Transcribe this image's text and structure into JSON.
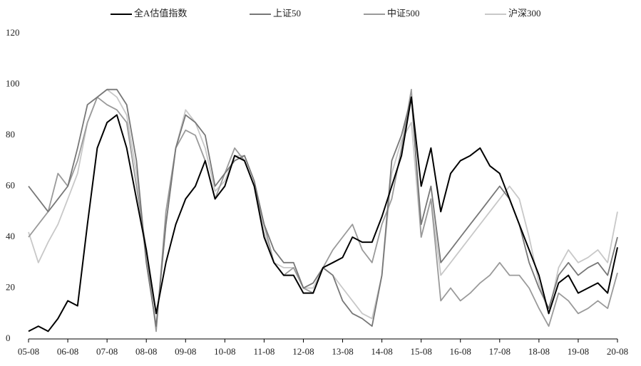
{
  "chart_data": {
    "type": "line",
    "categories": [
      "05-08",
      null,
      null,
      null,
      "06-08",
      null,
      null,
      null,
      "07-08",
      null,
      null,
      null,
      "08-08",
      null,
      null,
      null,
      "09-08",
      null,
      null,
      null,
      "10-08",
      null,
      null,
      null,
      "11-08",
      null,
      null,
      null,
      "12-08",
      null,
      null,
      null,
      "13-08",
      null,
      null,
      null,
      "14-08",
      null,
      null,
      null,
      "15-08",
      null,
      null,
      null,
      "16-08",
      null,
      null,
      null,
      "17-08",
      null,
      null,
      null,
      "18-08",
      null,
      null,
      null,
      "19-08",
      null,
      null,
      null,
      "20-08"
    ],
    "series": [
      {
        "name": "全A估值指数",
        "color": "#000000",
        "values": [
          3,
          5,
          3,
          8,
          15,
          13,
          45,
          75,
          85,
          88,
          75,
          55,
          35,
          10,
          30,
          45,
          55,
          60,
          70,
          55,
          60,
          72,
          70,
          60,
          40,
          30,
          25,
          25,
          18,
          18,
          28,
          30,
          32,
          40,
          38,
          38,
          48,
          60,
          72,
          95,
          60,
          75,
          50,
          65,
          70,
          72,
          75,
          68,
          65,
          55,
          45,
          35,
          25,
          10,
          22,
          25,
          18,
          20,
          22,
          18,
          36
        ]
      },
      {
        "name": "上证50",
        "color": "#777777",
        "values": [
          60,
          55,
          50,
          55,
          60,
          75,
          92,
          95,
          98,
          98,
          92,
          70,
          30,
          5,
          45,
          75,
          88,
          85,
          80,
          60,
          65,
          70,
          72,
          62,
          45,
          35,
          30,
          30,
          20,
          22,
          28,
          25,
          15,
          10,
          8,
          5,
          25,
          70,
          80,
          95,
          45,
          60,
          30,
          35,
          40,
          45,
          50,
          55,
          60,
          55,
          45,
          30,
          20,
          12,
          25,
          30,
          25,
          28,
          30,
          25,
          40
        ]
      },
      {
        "name": "中证500",
        "color": "#9a9a9a",
        "values": [
          40,
          45,
          50,
          65,
          60,
          70,
          85,
          95,
          92,
          90,
          85,
          60,
          35,
          3,
          50,
          75,
          82,
          80,
          70,
          55,
          65,
          75,
          70,
          60,
          45,
          30,
          25,
          28,
          20,
          18,
          28,
          35,
          40,
          45,
          35,
          30,
          45,
          55,
          75,
          98,
          40,
          55,
          15,
          20,
          15,
          18,
          22,
          25,
          30,
          25,
          25,
          20,
          12,
          5,
          18,
          15,
          10,
          12,
          15,
          12,
          26
        ]
      },
      {
        "name": "沪深300",
        "color": "#c8c8c8",
        "values": [
          42,
          30,
          38,
          45,
          55,
          65,
          85,
          95,
          98,
          95,
          88,
          65,
          30,
          5,
          45,
          75,
          90,
          85,
          75,
          58,
          62,
          72,
          72,
          62,
          42,
          30,
          28,
          28,
          20,
          20,
          28,
          25,
          20,
          15,
          10,
          8,
          25,
          65,
          78,
          85,
          40,
          55,
          25,
          30,
          35,
          40,
          45,
          50,
          55,
          60,
          55,
          40,
          22,
          10,
          28,
          35,
          30,
          32,
          35,
          30,
          50
        ]
      }
    ],
    "ylim": [
      0,
      120
    ],
    "yticks": [
      0,
      20,
      40,
      60,
      80,
      100,
      120
    ],
    "grid": false
  }
}
